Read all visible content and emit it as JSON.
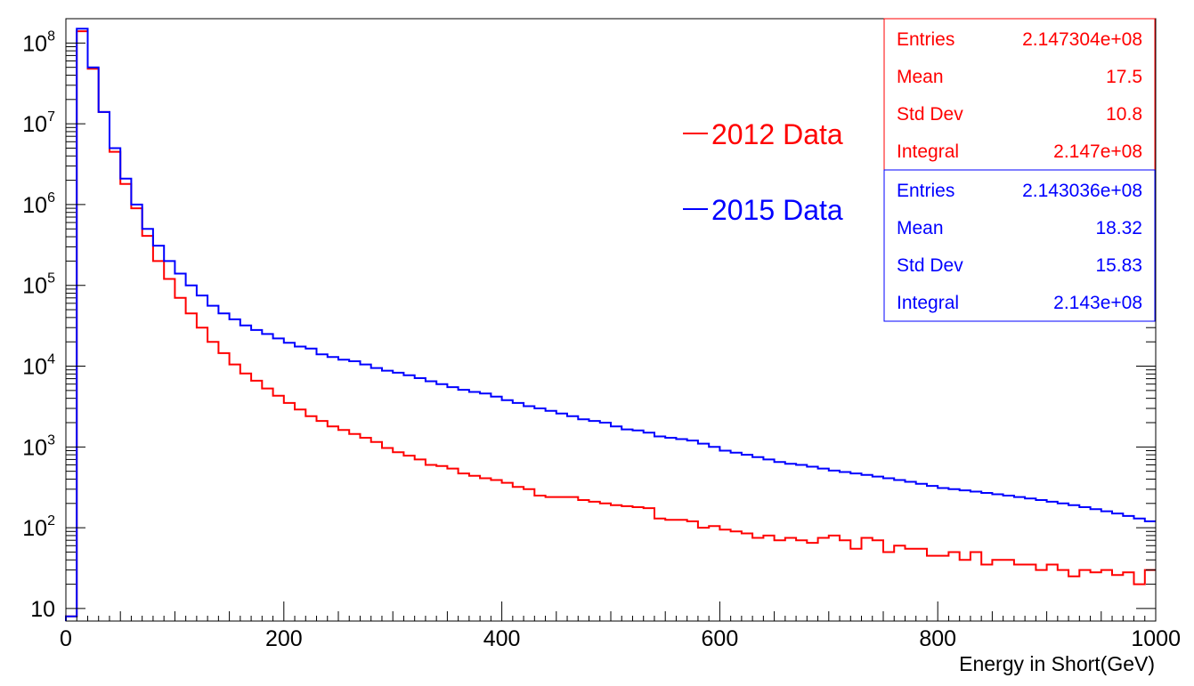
{
  "chart_data": {
    "type": "line",
    "xlabel": "Energy in Short(GeV)",
    "ylabel": "",
    "xlim": [
      0,
      1000
    ],
    "ylim": [
      7,
      200000000
    ],
    "log_y": true,
    "grid": false,
    "x_ticks": [
      "0",
      "200",
      "400",
      "600",
      "800",
      "1000"
    ],
    "y_ticks": [
      {
        "value": 10,
        "label": "10"
      },
      {
        "value": 100,
        "base": "10",
        "exp": "2"
      },
      {
        "value": 1000,
        "base": "10",
        "exp": "3"
      },
      {
        "value": 10000,
        "base": "10",
        "exp": "4"
      },
      {
        "value": 100000,
        "base": "10",
        "exp": "5"
      },
      {
        "value": 1000000,
        "base": "10",
        "exp": "6"
      },
      {
        "value": 10000000,
        "base": "10",
        "exp": "7"
      },
      {
        "value": 100000000,
        "base": "10",
        "exp": "8"
      }
    ],
    "bin_width": 10,
    "x": [
      5,
      15,
      25,
      35,
      45,
      55,
      65,
      75,
      85,
      95,
      105,
      115,
      125,
      135,
      145,
      155,
      165,
      175,
      185,
      195,
      205,
      215,
      225,
      235,
      245,
      255,
      265,
      275,
      285,
      295,
      305,
      315,
      325,
      335,
      345,
      355,
      365,
      375,
      385,
      395,
      405,
      415,
      425,
      435,
      445,
      455,
      465,
      475,
      485,
      495,
      505,
      515,
      525,
      535,
      545,
      555,
      565,
      575,
      585,
      595,
      605,
      615,
      625,
      635,
      645,
      655,
      665,
      675,
      685,
      695,
      705,
      715,
      725,
      735,
      745,
      755,
      765,
      775,
      785,
      795,
      805,
      815,
      825,
      835,
      845,
      855,
      865,
      875,
      885,
      895,
      905,
      915,
      925,
      935,
      945,
      955,
      965,
      975,
      985,
      995
    ],
    "series": [
      {
        "name": "2012 Data",
        "color": "#ff0000",
        "values": [
          8,
          140000000,
          48000000,
          14000000,
          4500000,
          1800000,
          900000,
          410000,
          200000,
          120000,
          70000,
          45000,
          30000,
          20000,
          14500,
          10500,
          8100,
          6600,
          5300,
          4300,
          3500,
          2900,
          2400,
          2100,
          1800,
          1620,
          1450,
          1300,
          1150,
          970,
          860,
          780,
          700,
          600,
          580,
          540,
          470,
          440,
          410,
          390,
          360,
          320,
          300,
          250,
          240,
          240,
          240,
          220,
          210,
          200,
          190,
          185,
          180,
          175,
          130,
          125,
          125,
          120,
          100,
          105,
          95,
          90,
          85,
          75,
          80,
          70,
          75,
          70,
          65,
          75,
          80,
          70,
          55,
          75,
          70,
          50,
          60,
          55,
          55,
          45,
          45,
          50,
          40,
          50,
          35,
          40,
          40,
          35,
          35,
          30,
          35,
          30,
          25,
          30,
          28,
          30,
          26,
          28,
          20,
          30
        ]
      },
      {
        "name": "2015 Data",
        "color": "#0000ff",
        "values": [
          8,
          150000000,
          50000000,
          14000000,
          5000000,
          2100000,
          1000000,
          500000,
          310000,
          200000,
          140000,
          100000,
          75000,
          56000,
          45000,
          38000,
          32000,
          28000,
          25000,
          22000,
          19500,
          17500,
          16500,
          14000,
          13000,
          12000,
          11500,
          10500,
          9500,
          8800,
          8300,
          7700,
          7100,
          6500,
          6000,
          5500,
          5100,
          4800,
          4600,
          4200,
          3800,
          3500,
          3200,
          3000,
          2800,
          2600,
          2400,
          2200,
          2100,
          2000,
          1800,
          1650,
          1600,
          1500,
          1350,
          1300,
          1250,
          1200,
          1100,
          1000,
          900,
          850,
          800,
          750,
          700,
          650,
          620,
          600,
          570,
          540,
          510,
          490,
          470,
          450,
          430,
          410,
          390,
          370,
          350,
          330,
          310,
          300,
          290,
          280,
          270,
          260,
          250,
          240,
          230,
          220,
          210,
          200,
          190,
          180,
          170,
          160,
          150,
          140,
          130,
          120
        ]
      }
    ],
    "stats": [
      {
        "color": "#ff0000",
        "rows": [
          {
            "label": "Entries",
            "value": "2.147304e+08"
          },
          {
            "label": "Mean",
            "value": "17.5"
          },
          {
            "label": "Std Dev",
            "value": "10.8"
          },
          {
            "label": "Integral",
            "value": "2.147e+08"
          }
        ]
      },
      {
        "color": "#0000ff",
        "rows": [
          {
            "label": "Entries",
            "value": "2.143036e+08"
          },
          {
            "label": "Mean",
            "value": "18.32"
          },
          {
            "label": "Std Dev",
            "value": "15.83"
          },
          {
            "label": "Integral",
            "value": "2.143e+08"
          }
        ]
      }
    ]
  }
}
